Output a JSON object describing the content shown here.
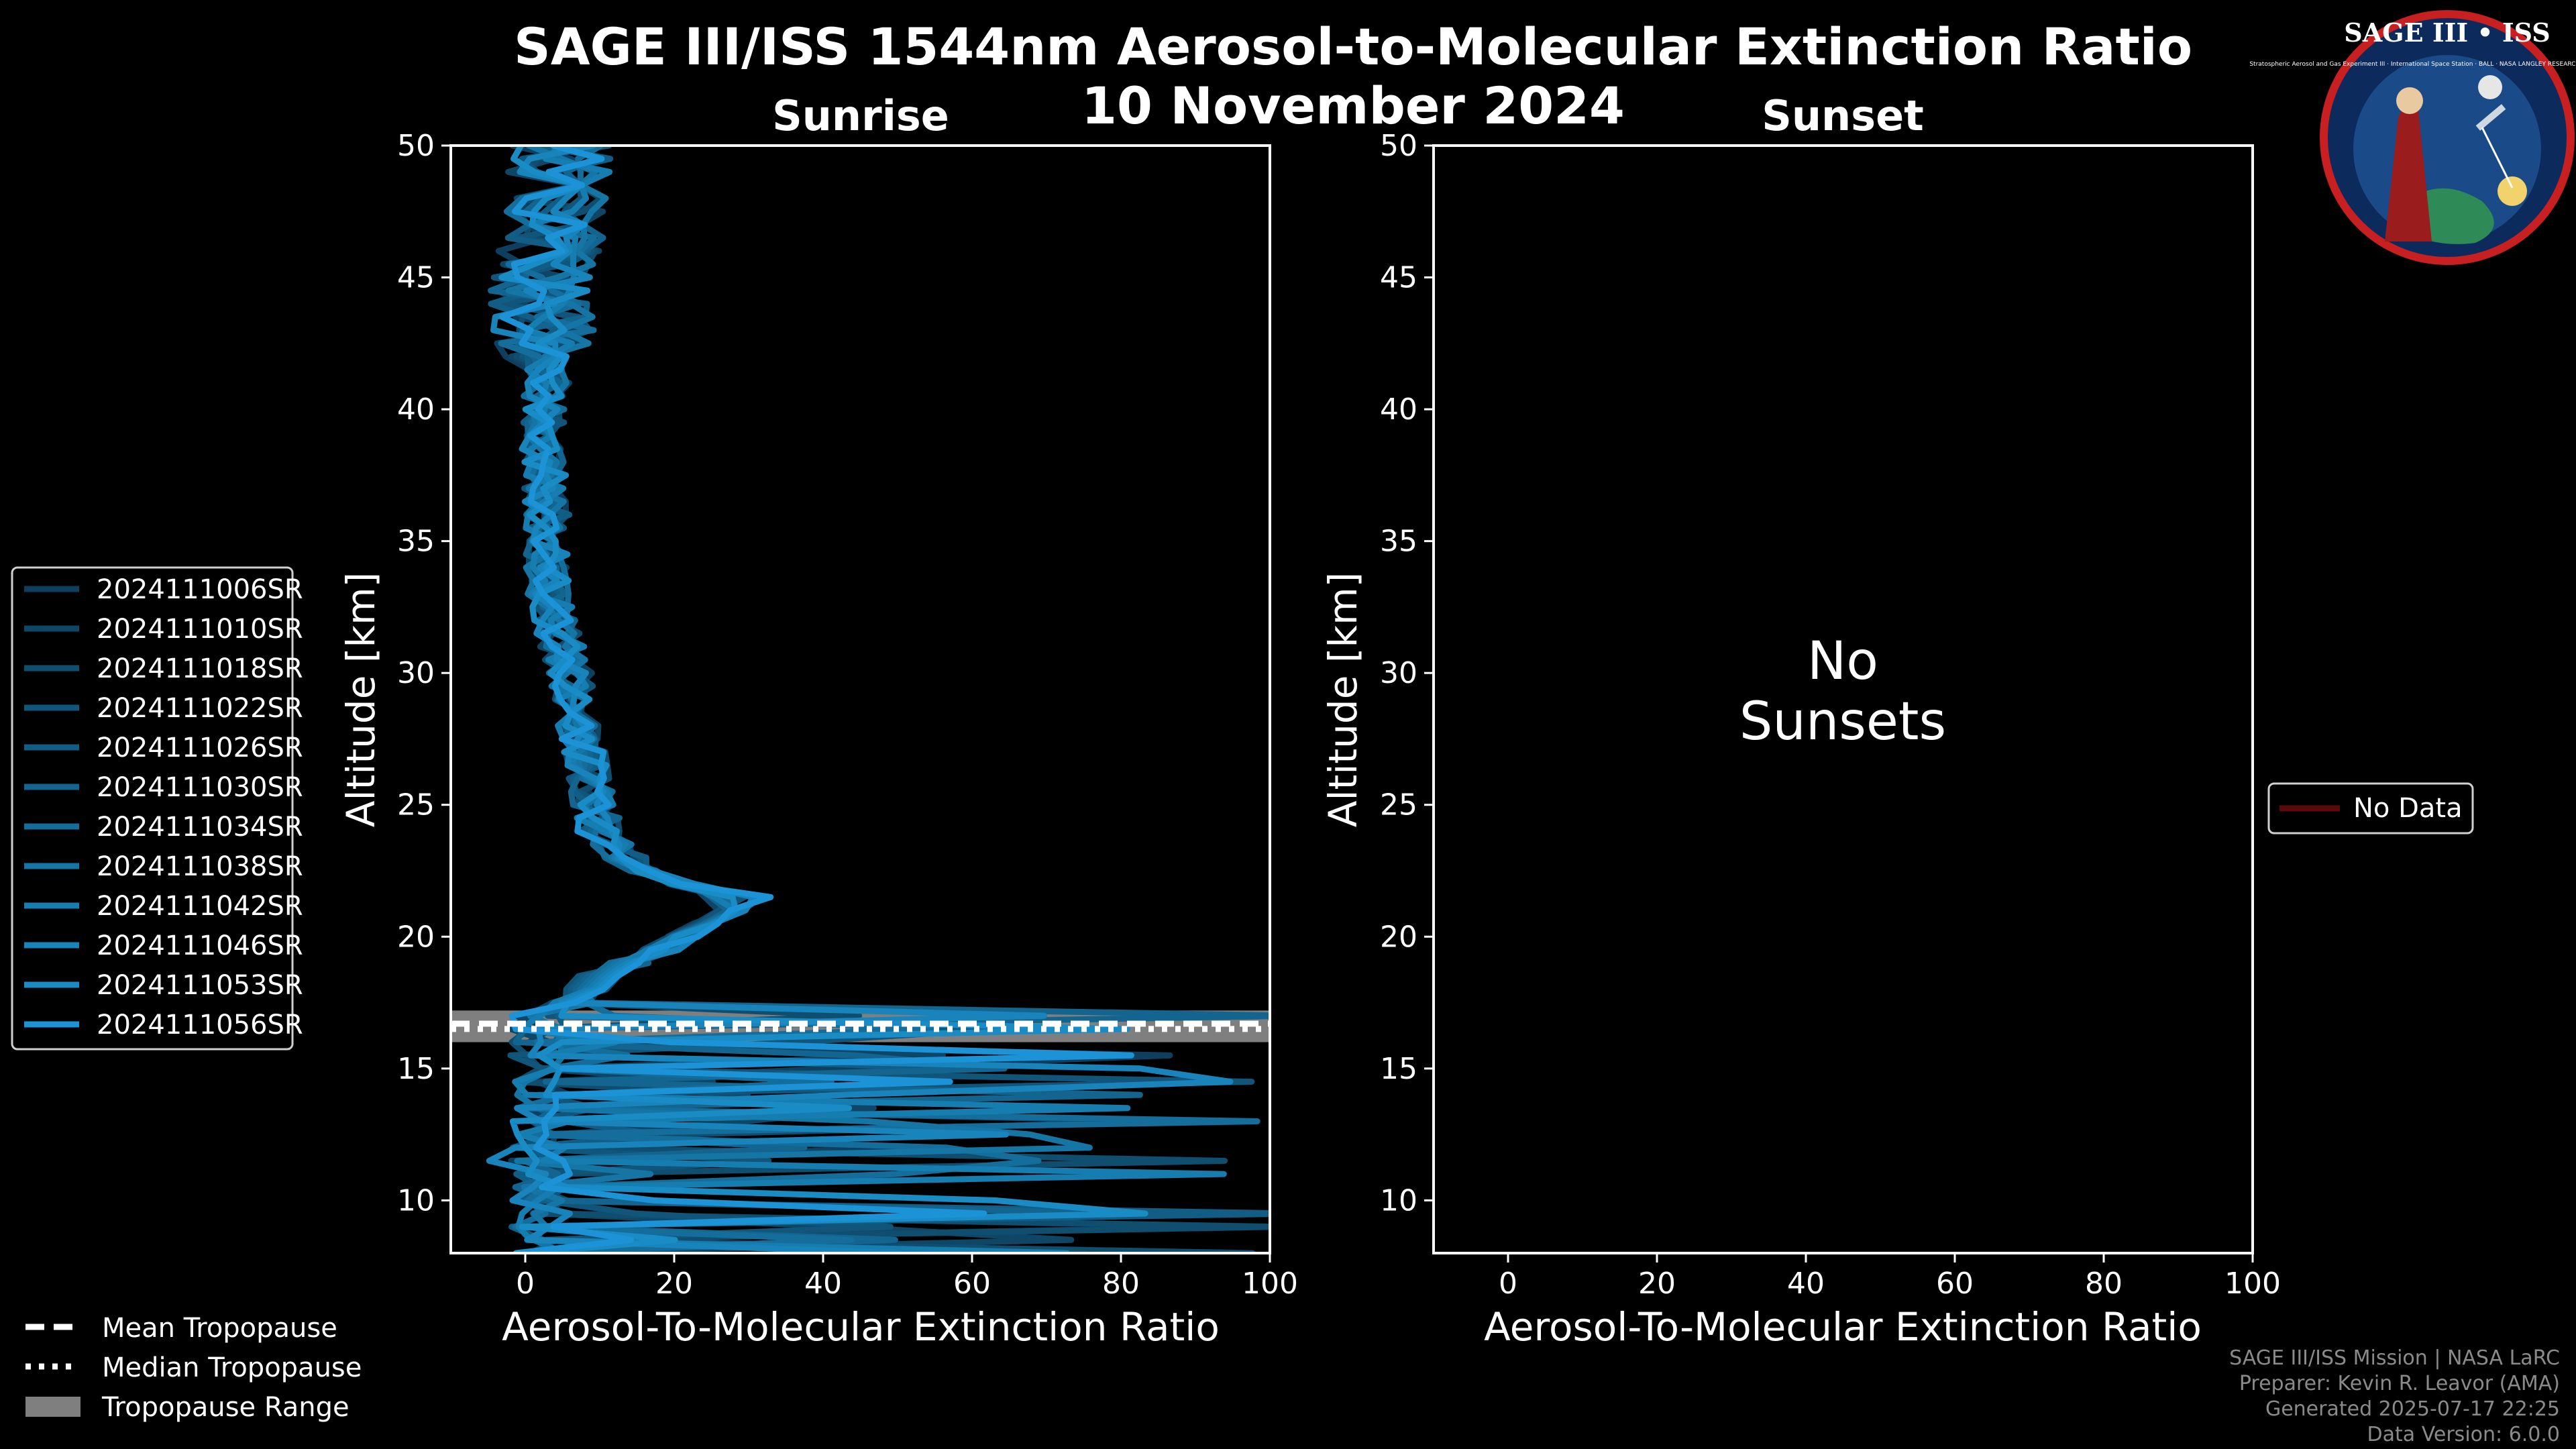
{
  "header": {
    "title": "SAGE III/ISS 1544nm Aerosol-to-Molecular Extinction Ratio",
    "date": "10 November 2024"
  },
  "logo": {
    "name": "SAGE III • ISS",
    "text": "Stratospheric Aerosol and Gas Experiment III · International Space Station · BALL · NASA LANGLEY RESEARCH CENTER · TAS-I · ESA"
  },
  "colors": {
    "background": "#000000",
    "profile_dark": "#0e3f5f",
    "profile_light": "#1b93d6",
    "tropopause_range": "#7f7f7f",
    "no_data": "#5a0a0a"
  },
  "chart_data": [
    {
      "type": "line",
      "panel": "Sunrise",
      "title": "Sunrise",
      "xlabel": "Aerosol-To-Molecular Extinction Ratio",
      "ylabel": "Altitude [km]",
      "xlim": [
        -10,
        100
      ],
      "ylim": [
        8,
        50
      ],
      "xticks": [
        0,
        20,
        40,
        60,
        80,
        100
      ],
      "yticks": [
        10,
        15,
        20,
        25,
        30,
        35,
        40,
        45,
        50
      ],
      "tropopause": {
        "mean": 16.7,
        "median": 16.5,
        "range": [
          16.0,
          17.2
        ]
      },
      "legend_placement": "left",
      "series": [
        {
          "name": "2024111006SR",
          "color": "#0e3f5f",
          "seed": 1,
          "peak": 28
        },
        {
          "name": "2024111010SR",
          "color": "#0f4666",
          "seed": 2,
          "peak": 30
        },
        {
          "name": "2024111018SR",
          "color": "#104e70",
          "seed": 3,
          "peak": 24
        },
        {
          "name": "2024111022SR",
          "color": "#11557a",
          "seed": 4,
          "peak": 33
        },
        {
          "name": "2024111026SR",
          "color": "#125d85",
          "seed": 5,
          "peak": 27
        },
        {
          "name": "2024111030SR",
          "color": "#13658f",
          "seed": 6,
          "peak": 31
        },
        {
          "name": "2024111034SR",
          "color": "#146d9a",
          "seed": 7,
          "peak": 29
        },
        {
          "name": "2024111038SR",
          "color": "#1575a5",
          "seed": 8,
          "peak": 35
        },
        {
          "name": "2024111042SR",
          "color": "#167db0",
          "seed": 9,
          "peak": 26
        },
        {
          "name": "2024111046SR",
          "color": "#1884bb",
          "seed": 10,
          "peak": 37
        },
        {
          "name": "2024111053SR",
          "color": "#198cc6",
          "seed": 11,
          "peak": 32
        },
        {
          "name": "2024111056SR",
          "color": "#1b93d6",
          "seed": 12,
          "peak": 36
        }
      ],
      "mean_profile": [
        [
          1,
          8
        ],
        [
          2,
          12
        ],
        [
          3,
          16.5
        ],
        [
          10,
          18.5
        ],
        [
          20,
          19.8
        ],
        [
          29,
          21.2
        ],
        [
          15,
          22.6
        ],
        [
          10,
          24
        ],
        [
          8,
          27
        ],
        [
          6,
          30
        ],
        [
          3,
          33
        ],
        [
          3,
          36
        ],
        [
          2,
          39
        ],
        [
          3,
          41
        ],
        [
          2,
          44
        ],
        [
          4,
          47
        ],
        [
          5,
          50
        ]
      ]
    },
    {
      "type": "line",
      "panel": "Sunset",
      "title": "Sunset",
      "xlabel": "Aerosol-To-Molecular Extinction Ratio",
      "ylabel": "Altitude [km]",
      "xlim": [
        -10,
        100
      ],
      "ylim": [
        8,
        50
      ],
      "xticks": [
        0,
        20,
        40,
        60,
        80,
        100
      ],
      "yticks": [
        10,
        15,
        20,
        25,
        30,
        35,
        40,
        45,
        50
      ],
      "annotation": "No\nSunsets",
      "legend_placement": "right",
      "series": [
        {
          "name": "No Data",
          "color": "#5a0a0a",
          "values": []
        }
      ]
    }
  ],
  "tropopause_legend": [
    {
      "label": "Mean Tropopause",
      "style": "dashed"
    },
    {
      "label": "Median Tropopause",
      "style": "dotted"
    },
    {
      "label": "Tropopause Range",
      "style": "box"
    }
  ],
  "footer": {
    "line1": "SAGE III/ISS Mission | NASA LaRC",
    "line2": "Preparer: Kevin R. Leavor (AMA)",
    "line3": "Generated 2025-07-17 22:25",
    "line4": "Data Version: 6.0.0"
  }
}
